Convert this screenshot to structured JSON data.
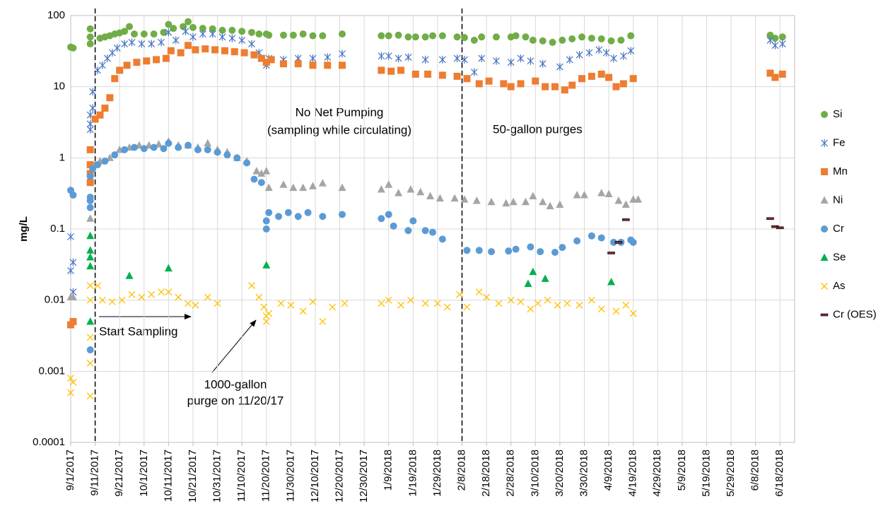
{
  "chart_data": {
    "type": "scatter",
    "y_label": "mg/L",
    "log_y": true,
    "grid": true,
    "legend_position": "right",
    "ylim": [
      0.0001,
      100
    ],
    "yticks": [
      0.0001,
      0.001,
      0.01,
      0.1,
      1,
      10,
      100
    ],
    "xlim": [
      "9/1/2017",
      "6/24/2018"
    ],
    "xticks": [
      "9/1/2017",
      "9/11/2017",
      "9/21/2017",
      "10/1/2017",
      "10/11/2017",
      "10/21/2017",
      "10/31/2017",
      "11/10/2017",
      "11/20/2017",
      "11/30/2017",
      "12/10/2017",
      "12/20/2017",
      "12/30/2017",
      "1/9/2018",
      "1/19/2018",
      "1/29/2018",
      "2/8/2018",
      "2/18/2018",
      "2/28/2018",
      "3/10/2018",
      "3/20/2018",
      "3/30/2018",
      "4/9/2018",
      "4/19/2018",
      "4/29/2018",
      "5/9/2018",
      "5/19/2018",
      "5/29/2018",
      "6/8/2018",
      "6/18/2018"
    ],
    "reference_lines": [
      "9/11/2017",
      "2/8/2018"
    ],
    "annotations": [
      "No Net Pumping",
      "(sampling while circulating)",
      "50-gallon purges",
      "Start Sampling",
      "1000-gallon",
      "purge on 11/20/17"
    ],
    "series": [
      {
        "name": "Si",
        "color": "#70ad47",
        "marker": "circle",
        "x": [
          "9/1/2017",
          "9/2/2017",
          "9/9/2017",
          "9/9/2017",
          "9/9/2017",
          "9/13/2017",
          "9/15/2017",
          "9/17/2017",
          "9/19/2017",
          "9/21/2017",
          "9/23/2017",
          "9/25/2017",
          "9/27/2017",
          "10/1/2017",
          "10/5/2017",
          "10/9/2017",
          "10/11/2017",
          "10/13/2017",
          "10/17/2017",
          "10/19/2017",
          "10/21/2017",
          "10/25/2017",
          "10/29/2017",
          "11/2/2017",
          "11/6/2017",
          "11/10/2017",
          "11/14/2017",
          "11/17/2017",
          "11/20/2017",
          "11/21/2017",
          "11/27/2017",
          "12/1/2017",
          "12/5/2017",
          "12/9/2017",
          "12/13/2017",
          "12/21/2017",
          "1/6/2018",
          "1/9/2018",
          "1/13/2018",
          "1/17/2018",
          "1/20/2018",
          "1/24/2018",
          "1/27/2018",
          "1/31/2018",
          "2/6/2018",
          "2/9/2018",
          "2/13/2018",
          "2/16/2018",
          "2/22/2018",
          "2/28/2018",
          "3/2/2018",
          "3/6/2018",
          "3/9/2018",
          "3/13/2018",
          "3/17/2018",
          "3/21/2018",
          "3/25/2018",
          "3/29/2018",
          "4/2/2018",
          "4/6/2018",
          "4/10/2018",
          "4/14/2018",
          "4/18/2018",
          "6/14/2018",
          "6/16/2018",
          "6/19/2018"
        ],
        "values": [
          36,
          35,
          40,
          50,
          65,
          48,
          50,
          52,
          55,
          57,
          60,
          70,
          55,
          55,
          55,
          58,
          75,
          66,
          70,
          82,
          68,
          66,
          65,
          62,
          62,
          60,
          58,
          55,
          55,
          53,
          53,
          53,
          55,
          52,
          52,
          55,
          52,
          52,
          53,
          50,
          50,
          50,
          52,
          52,
          50,
          49,
          45,
          50,
          50,
          50,
          52,
          50,
          45,
          44,
          42,
          45,
          47,
          50,
          48,
          47,
          44,
          45,
          52,
          53,
          48,
          50
        ]
      },
      {
        "name": "Fe",
        "color": "#4472c4",
        "marker": "asterisk",
        "x": [
          "9/1/2017",
          "9/1/2017",
          "9/2/2017",
          "9/2/2017",
          "9/9/2017",
          "9/9/2017",
          "9/9/2017",
          "9/10/2017",
          "9/10/2017",
          "9/12/2017",
          "9/14/2017",
          "9/16/2017",
          "9/18/2017",
          "9/20/2017",
          "9/23/2017",
          "9/26/2017",
          "9/30/2017",
          "10/4/2017",
          "10/8/2017",
          "10/11/2017",
          "10/14/2017",
          "10/18/2017",
          "10/21/2017",
          "10/25/2017",
          "10/29/2017",
          "11/2/2017",
          "11/6/2017",
          "11/10/2017",
          "11/14/2017",
          "11/17/2017",
          "11/20/2017",
          "11/21/2017",
          "11/27/2017",
          "12/3/2017",
          "12/9/2017",
          "12/15/2017",
          "12/21/2017",
          "1/6/2018",
          "1/9/2018",
          "1/13/2018",
          "1/17/2018",
          "1/24/2018",
          "1/31/2018",
          "2/6/2018",
          "2/9/2018",
          "2/13/2018",
          "2/16/2018",
          "2/22/2018",
          "2/28/2018",
          "3/4/2018",
          "3/8/2018",
          "3/13/2018",
          "3/20/2018",
          "3/24/2018",
          "3/28/2018",
          "4/1/2018",
          "4/5/2018",
          "4/8/2018",
          "4/11/2018",
          "4/15/2018",
          "4/18/2018",
          "6/14/2018",
          "6/16/2018",
          "6/19/2018"
        ],
        "values": [
          0.078,
          0.026,
          0.034,
          0.013,
          2.5,
          3,
          4,
          5,
          8.5,
          17,
          20,
          25,
          30,
          35,
          40,
          42,
          40,
          40,
          42,
          58,
          45,
          60,
          50,
          55,
          55,
          50,
          48,
          45,
          40,
          30,
          20,
          25,
          24,
          25,
          25,
          26,
          29,
          27,
          27,
          25,
          26,
          24,
          24,
          25,
          24,
          16,
          25,
          23,
          22,
          25,
          23,
          21,
          19,
          24,
          28,
          30,
          33,
          30,
          25,
          27,
          32,
          45,
          38,
          40
        ]
      },
      {
        "name": "Mn",
        "color": "#ed7d31",
        "marker": "square",
        "x": [
          "9/1/2017",
          "9/2/2017",
          "9/9/2017",
          "9/9/2017",
          "9/9/2017",
          "9/9/2017",
          "9/11/2017",
          "9/13/2017",
          "9/15/2017",
          "9/17/2017",
          "9/19/2017",
          "9/21/2017",
          "9/24/2017",
          "9/28/2017",
          "10/2/2017",
          "10/6/2017",
          "10/10/2017",
          "10/12/2017",
          "10/16/2017",
          "10/19/2017",
          "10/22/2017",
          "10/26/2017",
          "10/30/2017",
          "11/3/2017",
          "11/7/2017",
          "11/11/2017",
          "11/15/2017",
          "11/18/2017",
          "11/20/2017",
          "11/22/2017",
          "11/27/2017",
          "12/3/2017",
          "12/9/2017",
          "12/15/2017",
          "12/21/2017",
          "1/6/2018",
          "1/10/2018",
          "1/14/2018",
          "1/20/2018",
          "1/25/2018",
          "1/31/2018",
          "2/6/2018",
          "2/10/2018",
          "2/15/2018",
          "2/19/2018",
          "2/25/2018",
          "2/28/2018",
          "3/4/2018",
          "3/10/2018",
          "3/14/2018",
          "3/18/2018",
          "3/22/2018",
          "3/25/2018",
          "3/29/2018",
          "4/2/2018",
          "4/6/2018",
          "4/9/2018",
          "4/12/2018",
          "4/15/2018",
          "4/19/2018",
          "6/14/2018",
          "6/16/2018",
          "6/19/2018"
        ],
        "values": [
          0.0045,
          0.005,
          0.45,
          0.6,
          0.8,
          1.3,
          3.5,
          4,
          5,
          7,
          13,
          17,
          20,
          22,
          23,
          24,
          25,
          32,
          30,
          38,
          33,
          34,
          33,
          32,
          31,
          30,
          28,
          25,
          22,
          24,
          21,
          21,
          20,
          20,
          20,
          17,
          16.5,
          17,
          15,
          15,
          14.5,
          14,
          13,
          11,
          12,
          11,
          10,
          11,
          12,
          10,
          10,
          9,
          10.5,
          13,
          14,
          15,
          13.5,
          10,
          11,
          13,
          15.5,
          13.5,
          15
        ]
      },
      {
        "name": "Ni",
        "color": "#a5a5a5",
        "marker": "triangle",
        "x": [
          "9/1/2017",
          "9/2/2017",
          "9/9/2017",
          "9/9/2017",
          "9/11/2017",
          "9/13/2017",
          "9/17/2017",
          "9/21/2017",
          "9/25/2017",
          "9/29/2017",
          "10/3/2017",
          "10/7/2017",
          "10/11/2017",
          "10/15/2017",
          "10/19/2017",
          "10/23/2017",
          "10/27/2017",
          "10/31/2017",
          "11/4/2017",
          "11/8/2017",
          "11/12/2017",
          "11/16/2017",
          "11/18/2017",
          "11/20/2017",
          "11/21/2017",
          "11/27/2017",
          "12/1/2017",
          "12/5/2017",
          "12/9/2017",
          "12/13/2017",
          "12/21/2017",
          "1/6/2018",
          "1/9/2018",
          "1/13/2018",
          "1/18/2018",
          "1/22/2018",
          "1/26/2018",
          "1/30/2018",
          "2/5/2018",
          "2/9/2018",
          "2/14/2018",
          "2/20/2018",
          "2/26/2018",
          "3/1/2018",
          "3/6/2018",
          "3/9/2018",
          "3/13/2018",
          "3/16/2018",
          "3/20/2018",
          "3/27/2018",
          "3/30/2018",
          "4/6/2018",
          "4/9/2018",
          "4/13/2018",
          "4/16/2018",
          "4/19/2018",
          "4/21/2018"
        ],
        "values": [
          0.011,
          0.011,
          0.04,
          0.14,
          0.8,
          0.9,
          1.0,
          1.3,
          1.4,
          1.5,
          1.5,
          1.55,
          1.7,
          1.5,
          1.5,
          1.4,
          1.6,
          1.3,
          1.2,
          1.0,
          0.9,
          0.65,
          0.6,
          0.65,
          0.38,
          0.42,
          0.38,
          0.38,
          0.4,
          0.44,
          0.38,
          0.36,
          0.42,
          0.32,
          0.36,
          0.33,
          0.29,
          0.27,
          0.27,
          0.26,
          0.25,
          0.24,
          0.23,
          0.24,
          0.24,
          0.29,
          0.24,
          0.21,
          0.22,
          0.3,
          0.3,
          0.32,
          0.31,
          0.25,
          0.22,
          0.26,
          0.26
        ]
      },
      {
        "name": "Cr",
        "color": "#5b9bd5",
        "marker": "circle",
        "x": [
          "9/1/2017",
          "9/2/2017",
          "9/9/2017",
          "9/9/2017",
          "9/9/2017",
          "9/9/2017",
          "9/9/2017",
          "9/10/2017",
          "9/12/2017",
          "9/15/2017",
          "9/19/2017",
          "9/23/2017",
          "9/27/2017",
          "10/1/2017",
          "10/5/2017",
          "10/9/2017",
          "10/11/2017",
          "10/15/2017",
          "10/19/2017",
          "10/23/2017",
          "10/27/2017",
          "10/31/2017",
          "11/4/2017",
          "11/8/2017",
          "11/12/2017",
          "11/15/2017",
          "11/18/2017",
          "11/20/2017",
          "11/20/2017",
          "11/21/2017",
          "11/25/2017",
          "11/29/2017",
          "12/3/2017",
          "12/7/2017",
          "12/13/2017",
          "12/21/2017",
          "1/6/2018",
          "1/9/2018",
          "1/11/2018",
          "1/17/2018",
          "1/19/2018",
          "1/24/2018",
          "1/27/2018",
          "1/31/2018",
          "2/10/2018",
          "2/15/2018",
          "2/20/2018",
          "2/27/2018",
          "3/2/2018",
          "3/8/2018",
          "3/12/2018",
          "3/18/2018",
          "3/21/2018",
          "3/27/2018",
          "4/2/2018",
          "4/6/2018",
          "4/11/2018",
          "4/14/2018",
          "4/18/2018",
          "4/19/2018"
        ],
        "values": [
          0.35,
          0.3,
          0.002,
          0.2,
          0.25,
          0.28,
          0.55,
          0.7,
          0.8,
          0.9,
          1.1,
          1.3,
          1.4,
          1.35,
          1.4,
          1.35,
          1.6,
          1.4,
          1.5,
          1.3,
          1.3,
          1.2,
          1.1,
          1.0,
          0.85,
          0.5,
          0.45,
          0.13,
          0.1,
          0.17,
          0.15,
          0.17,
          0.15,
          0.17,
          0.15,
          0.16,
          0.14,
          0.16,
          0.11,
          0.095,
          0.13,
          0.095,
          0.09,
          0.072,
          0.05,
          0.05,
          0.048,
          0.049,
          0.052,
          0.056,
          0.048,
          0.047,
          0.055,
          0.068,
          0.08,
          0.075,
          0.065,
          0.065,
          0.07,
          0.065
        ]
      },
      {
        "name": "Se",
        "color": "#00b050",
        "marker": "triangle",
        "x": [
          "9/9/2017",
          "9/9/2017",
          "9/9/2017",
          "9/9/2017",
          "9/9/2017",
          "9/25/2017",
          "10/11/2017",
          "11/20/2017",
          "3/7/2018",
          "3/9/2018",
          "3/14/2018",
          "4/10/2018"
        ],
        "values": [
          0.005,
          0.03,
          0.05,
          0.08,
          0.04,
          0.022,
          0.028,
          0.031,
          0.017,
          0.025,
          0.02,
          0.018
        ]
      },
      {
        "name": "As",
        "color": "#ffc000",
        "marker": "cross",
        "x": [
          "9/1/2017",
          "9/1/2017",
          "9/2/2017",
          "9/9/2017",
          "9/9/2017",
          "9/9/2017",
          "9/9/2017",
          "9/9/2017",
          "9/12/2017",
          "9/14/2017",
          "9/18/2017",
          "9/22/2017",
          "9/26/2017",
          "9/30/2017",
          "10/4/2017",
          "10/8/2017",
          "10/11/2017",
          "10/15/2017",
          "10/19/2017",
          "10/22/2017",
          "10/27/2017",
          "10/31/2017",
          "11/14/2017",
          "11/17/2017",
          "11/19/2017",
          "11/20/2017",
          "11/20/2017",
          "11/21/2017",
          "11/26/2017",
          "11/30/2017",
          "12/5/2017",
          "12/9/2017",
          "12/13/2017",
          "12/17/2017",
          "12/22/2017",
          "1/6/2018",
          "1/9/2018",
          "1/14/2018",
          "1/18/2018",
          "1/24/2018",
          "1/29/2018",
          "2/2/2018",
          "2/7/2018",
          "2/10/2018",
          "2/15/2018",
          "2/18/2018",
          "2/23/2018",
          "2/28/2018",
          "3/4/2018",
          "3/8/2018",
          "3/11/2018",
          "3/15/2018",
          "3/19/2018",
          "3/23/2018",
          "3/28/2018",
          "4/2/2018",
          "4/6/2018",
          "4/12/2018",
          "4/16/2018",
          "4/19/2018"
        ],
        "values": [
          0.0005,
          0.0008,
          0.0007,
          0.00045,
          0.0013,
          0.003,
          0.01,
          0.016,
          0.016,
          0.01,
          0.0095,
          0.01,
          0.012,
          0.011,
          0.012,
          0.013,
          0.013,
          0.011,
          0.009,
          0.0085,
          0.011,
          0.009,
          0.016,
          0.011,
          0.008,
          0.005,
          0.006,
          0.0065,
          0.009,
          0.0085,
          0.007,
          0.0095,
          0.005,
          0.008,
          0.009,
          0.009,
          0.01,
          0.0085,
          0.01,
          0.009,
          0.009,
          0.008,
          0.012,
          0.008,
          0.013,
          0.011,
          0.009,
          0.01,
          0.0095,
          0.0075,
          0.009,
          0.01,
          0.0085,
          0.009,
          0.0085,
          0.01,
          0.0075,
          0.007,
          0.0085,
          0.0065
        ]
      },
      {
        "name": "Cr (OES)",
        "color": "#7b2c2c",
        "marker": "dash",
        "x": [
          "4/10/2018",
          "4/13/2018",
          "4/16/2018",
          "6/14/2018",
          "6/16/2018",
          "6/18/2018"
        ],
        "values": [
          0.046,
          0.065,
          0.135,
          0.14,
          0.108,
          0.104
        ]
      }
    ]
  }
}
